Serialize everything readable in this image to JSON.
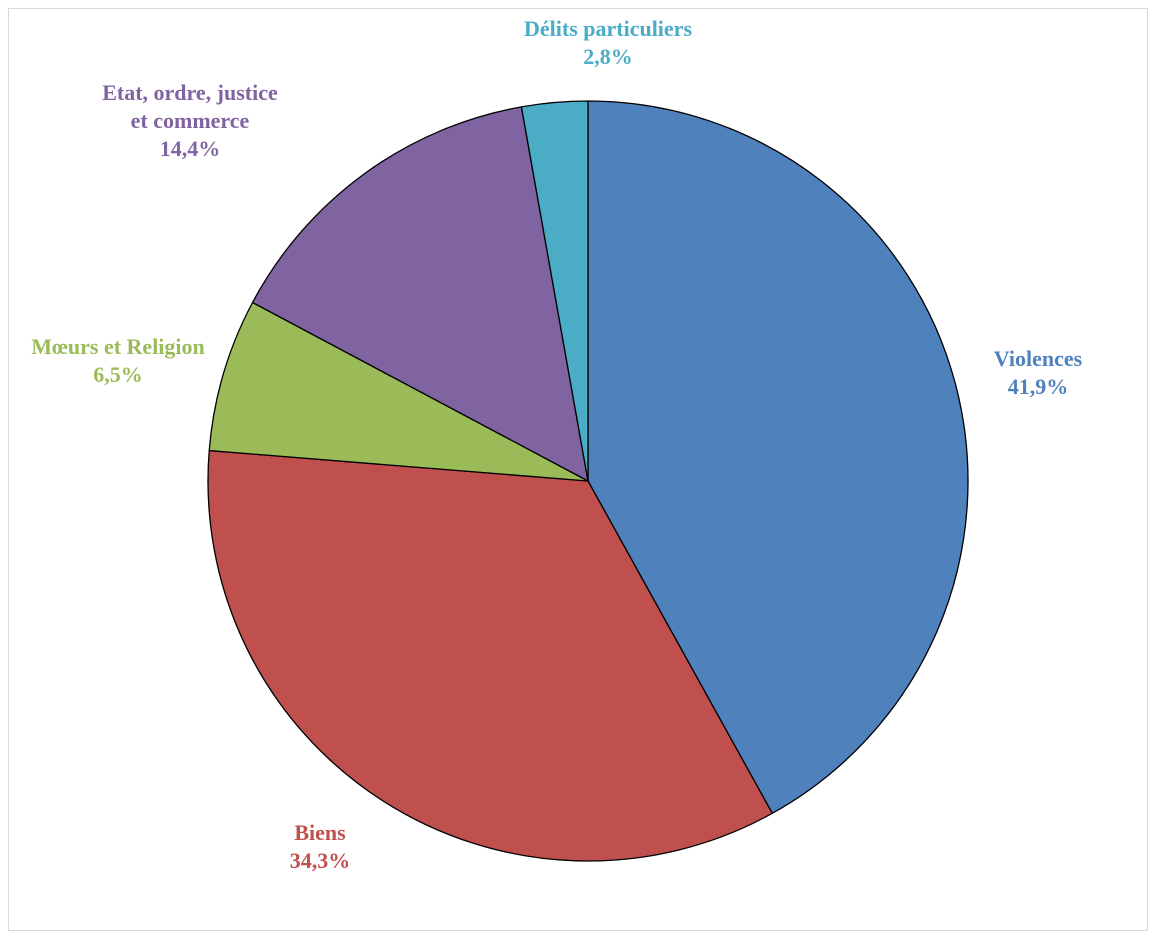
{
  "chart_data": {
    "type": "pie",
    "title": "",
    "start_angle_deg": 0,
    "direction": "clockwise",
    "slices": [
      {
        "name": "Violences",
        "value": 41.9,
        "label_value": "41,9%",
        "color": "#4F81BD"
      },
      {
        "name": "Biens",
        "value": 34.3,
        "label_value": "34,3%",
        "color": "#C0504D"
      },
      {
        "name": "Mœurs et Religion",
        "value": 6.5,
        "label_value": "6,5%",
        "color": "#9BBB59"
      },
      {
        "name": "Etat, ordre, justice et commerce",
        "value": 14.4,
        "label_value": "14,4%",
        "color": "#8064A2"
      },
      {
        "name": "Délits particuliers",
        "value": 2.8,
        "label_value": "2,8%",
        "color": "#4BACC6"
      }
    ],
    "legend": "none",
    "data_labels": "outside"
  }
}
